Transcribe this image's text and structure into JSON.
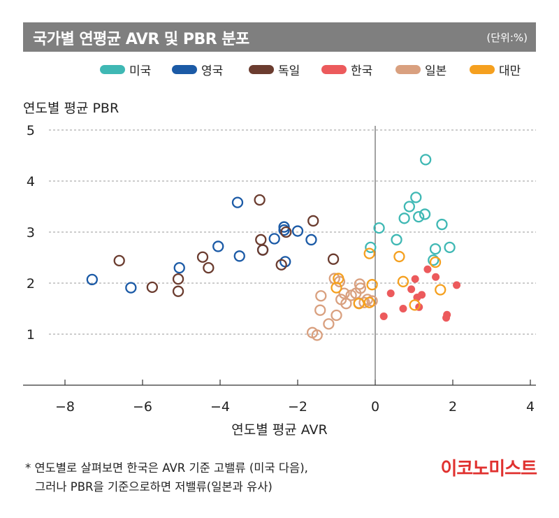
{
  "header": {
    "title": "국가별 연평균 AVR 및 PBR 분포",
    "unit": "(단위:%)"
  },
  "footnote": {
    "line1": "* 연도별로 살펴보면 한국은 AVR 기준 고밸류 (미국 다음),",
    "line2": "그러나 PBR을 기준으로하면 저밸류(일본과 유사)"
  },
  "brand": "이코노미스트",
  "chart_data": {
    "type": "scatter",
    "title": "국가별 연평균 AVR 및 PBR 분포",
    "xlabel": "연도별 평균 AVR",
    "ylabel": "연도별 평균 PBR",
    "xlim": [
      -9,
      4.2
    ],
    "ylim": [
      0,
      5
    ],
    "xticks": [
      -8,
      -6,
      -4,
      -2,
      0,
      2,
      4
    ],
    "yticks": [
      1,
      2,
      3,
      4,
      5
    ],
    "grid": "horizontal dotted",
    "legend_position": "top",
    "series": [
      {
        "name": "미국",
        "color": "#3fb8b4",
        "marker": "open-circle",
        "points": [
          [
            1.3,
            4.42
          ],
          [
            1.05,
            3.68
          ],
          [
            0.88,
            3.5
          ],
          [
            0.75,
            3.27
          ],
          [
            1.12,
            3.3
          ],
          [
            1.28,
            3.35
          ],
          [
            1.72,
            3.15
          ],
          [
            0.1,
            3.08
          ],
          [
            0.55,
            2.85
          ],
          [
            -0.12,
            2.7
          ],
          [
            1.92,
            2.7
          ],
          [
            1.55,
            2.67
          ],
          [
            1.5,
            2.45
          ]
        ]
      },
      {
        "name": "영국",
        "color": "#1b5aa6",
        "marker": "open-circle",
        "points": [
          [
            -7.3,
            2.07
          ],
          [
            -6.3,
            1.91
          ],
          [
            -5.05,
            2.3
          ],
          [
            -4.05,
            2.72
          ],
          [
            -3.55,
            3.58
          ],
          [
            -3.5,
            2.53
          ],
          [
            -2.35,
            3.1
          ],
          [
            -2.35,
            3.04
          ],
          [
            -2.6,
            2.87
          ],
          [
            -2.0,
            3.02
          ],
          [
            -1.65,
            2.85
          ],
          [
            -2.32,
            2.42
          ],
          [
            -2.9,
            2.65
          ]
        ]
      },
      {
        "name": "독일",
        "color": "#6b3c2f",
        "marker": "open-circle",
        "points": [
          [
            -6.6,
            2.44
          ],
          [
            -5.75,
            1.92
          ],
          [
            -5.08,
            2.08
          ],
          [
            -5.08,
            1.84
          ],
          [
            -4.45,
            2.51
          ],
          [
            -4.3,
            2.3
          ],
          [
            -2.98,
            3.63
          ],
          [
            -2.95,
            2.85
          ],
          [
            -2.9,
            2.65
          ],
          [
            -2.3,
            3.0
          ],
          [
            -2.42,
            2.36
          ],
          [
            -1.6,
            3.22
          ],
          [
            -1.08,
            2.47
          ]
        ]
      },
      {
        "name": "한국",
        "color": "#ec5a5c",
        "marker": "filled-circle",
        "points": [
          [
            1.35,
            2.27
          ],
          [
            1.03,
            2.08
          ],
          [
            1.56,
            2.12
          ],
          [
            2.1,
            1.96
          ],
          [
            0.93,
            1.88
          ],
          [
            0.4,
            1.8
          ],
          [
            1.2,
            1.77
          ],
          [
            1.08,
            1.72
          ],
          [
            0.72,
            1.5
          ],
          [
            1.13,
            1.53
          ],
          [
            1.85,
            1.38
          ],
          [
            0.22,
            1.35
          ],
          [
            1.83,
            1.32
          ]
        ]
      },
      {
        "name": "일본",
        "color": "#d9a07f",
        "marker": "open-circle",
        "points": [
          [
            -1.05,
            2.09
          ],
          [
            -0.92,
            2.03
          ],
          [
            -0.4,
            1.98
          ],
          [
            -0.38,
            1.9
          ],
          [
            -0.8,
            1.8
          ],
          [
            -0.62,
            1.76
          ],
          [
            -0.5,
            1.8
          ],
          [
            -0.88,
            1.68
          ],
          [
            -0.75,
            1.6
          ],
          [
            -0.2,
            1.68
          ],
          [
            -1.4,
            1.75
          ],
          [
            -1.42,
            1.47
          ],
          [
            -1.0,
            1.37
          ],
          [
            -1.2,
            1.2
          ],
          [
            -1.62,
            1.03
          ],
          [
            -1.5,
            0.98
          ],
          [
            -0.08,
            1.65
          ],
          [
            -0.28,
            1.62
          ],
          [
            -0.42,
            1.61
          ]
        ]
      },
      {
        "name": "대만",
        "color": "#f5a01f",
        "marker": "open-circle",
        "points": [
          [
            -0.15,
            2.58
          ],
          [
            0.62,
            2.52
          ],
          [
            1.55,
            2.41
          ],
          [
            -0.95,
            2.09
          ],
          [
            0.72,
            2.03
          ],
          [
            -0.08,
            1.97
          ],
          [
            -1.0,
            1.91
          ],
          [
            1.68,
            1.87
          ],
          [
            -0.42,
            1.6
          ],
          [
            -0.15,
            1.62
          ],
          [
            1.02,
            1.57
          ]
        ]
      }
    ]
  }
}
